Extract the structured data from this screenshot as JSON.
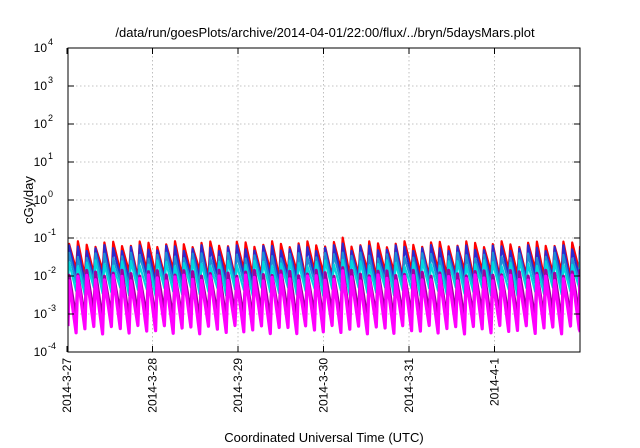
{
  "chart_data": {
    "type": "line",
    "title": "/data/run/goesPlots/archive/2014-04-01/22:00/flux/../bryn/5daysMars.plot",
    "xlabel": "Coordinated Universal Time (UTC)",
    "ylabel": "cGy/day",
    "y_scale": "log",
    "ylim": [
      0.0001,
      10000
    ],
    "x_range": [
      "2014-03-27 00:00",
      "2014-04-01 22:00"
    ],
    "grid": true,
    "legend": "none",
    "y_ticks": [
      {
        "base": "10",
        "exp": "-4"
      },
      {
        "base": "10",
        "exp": "-3"
      },
      {
        "base": "10",
        "exp": "-2"
      },
      {
        "base": "10",
        "exp": "-1"
      },
      {
        "base": "10",
        "exp": "0"
      },
      {
        "base": "10",
        "exp": "1"
      },
      {
        "base": "10",
        "exp": "2"
      },
      {
        "base": "10",
        "exp": "3"
      },
      {
        "base": "10",
        "exp": "4"
      }
    ],
    "x_ticks": [
      "2014-3-27",
      "2014-3-28",
      "2014-3-29",
      "2014-3-30",
      "2014-3-31",
      "2014-4-1"
    ],
    "series": [
      {
        "color": "#ff0000",
        "peak": 0.07,
        "trough": 0.012
      },
      {
        "color": "#2a2ad0",
        "peak": 0.055,
        "trough": 0.008
      },
      {
        "color": "#1e8fd6",
        "peak": 0.035,
        "trough": 0.006
      },
      {
        "color": "#00d8e0",
        "peak": 0.022,
        "trough": 0.004
      },
      {
        "color": "#a000a0",
        "peak": 0.012,
        "trough": 0.0008
      },
      {
        "color": "#ff00ff",
        "peak": 0.009,
        "trough": 0.0004
      }
    ],
    "cycles": 58
  }
}
